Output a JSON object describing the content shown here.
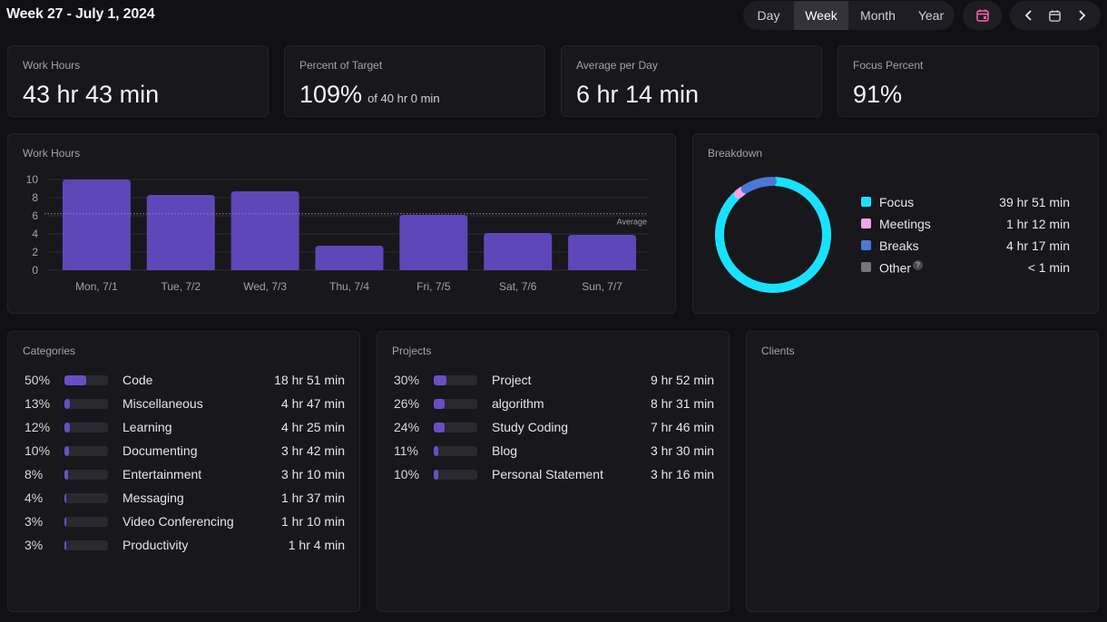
{
  "header": {
    "title": "Week 27 - July 1, 2024",
    "ranges": [
      "Day",
      "Week",
      "Month",
      "Year"
    ],
    "active_range": "Week",
    "icons": {
      "calendar_today": "calendar-check-icon",
      "prev": "chevron-left-icon",
      "picker": "calendar-icon",
      "next": "chevron-right-icon"
    }
  },
  "stats": {
    "work_hours": {
      "label": "Work Hours",
      "value": "43 hr 43 min"
    },
    "percent_target": {
      "label": "Percent of Target",
      "value": "109%",
      "sub": "of 40 hr 0 min"
    },
    "avg_per_day": {
      "label": "Average per Day",
      "value": "6 hr 14 min"
    },
    "focus_percent": {
      "label": "Focus Percent",
      "value": "91%"
    }
  },
  "chart_data": {
    "type": "bar",
    "title": "Work Hours",
    "categories": [
      "Mon, 7/1",
      "Tue, 7/2",
      "Wed, 7/3",
      "Thu, 7/4",
      "Fri, 7/5",
      "Sat, 7/6",
      "Sun, 7/7"
    ],
    "values": [
      10.0,
      8.3,
      8.7,
      2.7,
      6.1,
      4.1,
      3.9
    ],
    "ylim": [
      0,
      10
    ],
    "yticks": [
      0,
      2,
      4,
      6,
      8,
      10
    ],
    "average": {
      "value": 6.23,
      "label": "Average"
    },
    "bar_color": "#5e47b8",
    "grid": true
  },
  "breakdown": {
    "title": "Breakdown",
    "items": [
      {
        "name": "Focus",
        "value": "39 hr 51 min",
        "minutes": 2391,
        "color": "#18e2ff"
      },
      {
        "name": "Meetings",
        "value": "1 hr 12 min",
        "minutes": 72,
        "color": "#f0a6e8"
      },
      {
        "name": "Breaks",
        "value": "4 hr 17 min",
        "minutes": 257,
        "color": "#4a78d8"
      },
      {
        "name": "Other",
        "value": "< 1 min",
        "minutes": 0.5,
        "color": "#777680",
        "help": "?"
      }
    ]
  },
  "categories": {
    "title": "Categories",
    "rows": [
      {
        "pct": "50%",
        "fill": 0.5,
        "name": "Code",
        "value": "18 hr 51 min"
      },
      {
        "pct": "13%",
        "fill": 0.13,
        "name": "Miscellaneous",
        "value": "4 hr 47 min"
      },
      {
        "pct": "12%",
        "fill": 0.12,
        "name": "Learning",
        "value": "4 hr 25 min"
      },
      {
        "pct": "10%",
        "fill": 0.1,
        "name": "Documenting",
        "value": "3 hr 42 min"
      },
      {
        "pct": "8%",
        "fill": 0.08,
        "name": "Entertainment",
        "value": "3 hr 10 min"
      },
      {
        "pct": "4%",
        "fill": 0.04,
        "name": "Messaging",
        "value": "1 hr 37 min"
      },
      {
        "pct": "3%",
        "fill": 0.03,
        "name": "Video Conferencing",
        "value": "1 hr 10 min"
      },
      {
        "pct": "3%",
        "fill": 0.03,
        "name": "Productivity",
        "value": "1 hr 4 min"
      }
    ]
  },
  "projects": {
    "title": "Projects",
    "rows": [
      {
        "pct": "30%",
        "fill": 0.3,
        "name": "Project",
        "value": "9 hr 52 min"
      },
      {
        "pct": "26%",
        "fill": 0.26,
        "name": "algorithm",
        "value": "8 hr 31 min"
      },
      {
        "pct": "24%",
        "fill": 0.24,
        "name": "Study Coding",
        "value": "7 hr 46 min"
      },
      {
        "pct": "11%",
        "fill": 0.11,
        "name": "Blog",
        "value": "3 hr 30 min"
      },
      {
        "pct": "10%",
        "fill": 0.1,
        "name": "Personal Statement",
        "value": "3 hr 16 min"
      }
    ]
  },
  "clients": {
    "title": "Clients",
    "rows": []
  }
}
